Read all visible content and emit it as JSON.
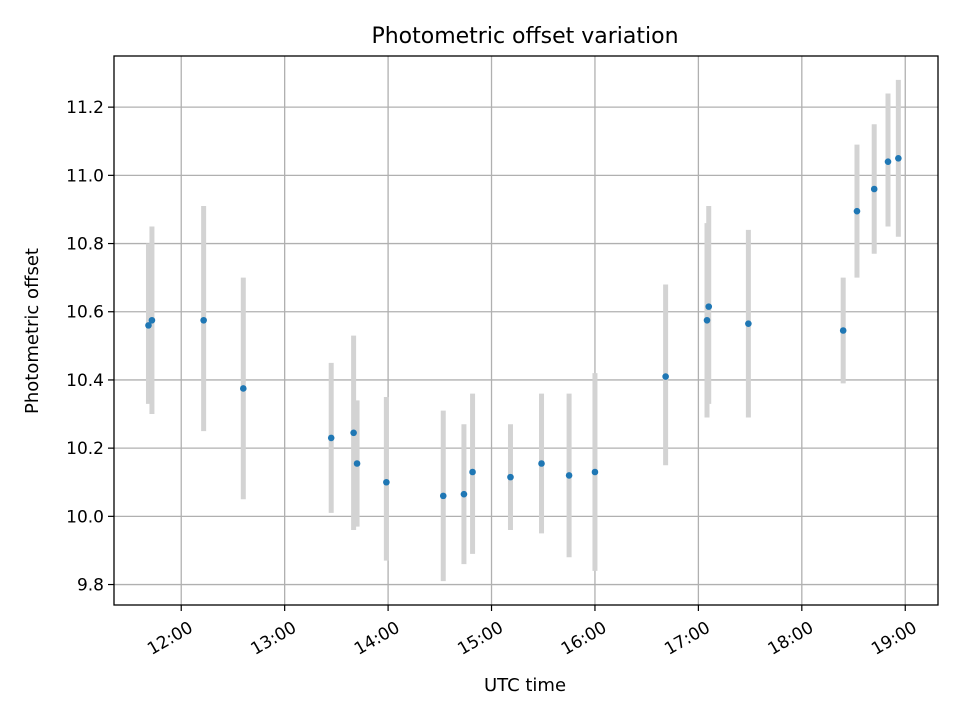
{
  "chart_data": {
    "type": "scatter",
    "title": "Photometric offset variation",
    "xlabel": "UTC time",
    "ylabel": "Photometric offset",
    "x_ticks": [
      "12:00",
      "13:00",
      "14:00",
      "15:00",
      "16:00",
      "17:00",
      "18:00",
      "19:00"
    ],
    "y_ticks": [
      "9.8",
      "10.0",
      "10.2",
      "10.4",
      "10.6",
      "10.8",
      "11.0",
      "11.2"
    ],
    "xlim": [
      "11:21",
      "19:19"
    ],
    "ylim": [
      9.74,
      11.35
    ],
    "grid": true,
    "colors": {
      "points": "#1f77b4",
      "errorbars": "#d3d3d3",
      "grid": "#b0b0b0"
    },
    "points": [
      {
        "time": "11:41",
        "y": 10.56,
        "ylow": 10.33,
        "yhigh": 10.8
      },
      {
        "time": "11:43",
        "y": 10.575,
        "ylow": 10.3,
        "yhigh": 10.85
      },
      {
        "time": "12:13",
        "y": 10.575,
        "ylow": 10.25,
        "yhigh": 10.91
      },
      {
        "time": "12:36",
        "y": 10.375,
        "ylow": 10.05,
        "yhigh": 10.7
      },
      {
        "time": "13:27",
        "y": 10.23,
        "ylow": 10.01,
        "yhigh": 10.45
      },
      {
        "time": "13:40",
        "y": 10.245,
        "ylow": 9.96,
        "yhigh": 10.53
      },
      {
        "time": "13:42",
        "y": 10.155,
        "ylow": 9.97,
        "yhigh": 10.34
      },
      {
        "time": "13:59",
        "y": 10.1,
        "ylow": 9.87,
        "yhigh": 10.35
      },
      {
        "time": "14:32",
        "y": 10.06,
        "ylow": 9.81,
        "yhigh": 10.31
      },
      {
        "time": "14:44",
        "y": 10.065,
        "ylow": 9.86,
        "yhigh": 10.27
      },
      {
        "time": "14:49",
        "y": 10.13,
        "ylow": 9.89,
        "yhigh": 10.36
      },
      {
        "time": "15:11",
        "y": 10.115,
        "ylow": 9.96,
        "yhigh": 10.27
      },
      {
        "time": "15:29",
        "y": 10.155,
        "ylow": 9.95,
        "yhigh": 10.36
      },
      {
        "time": "15:45",
        "y": 10.12,
        "ylow": 9.88,
        "yhigh": 10.36
      },
      {
        "time": "16:00",
        "y": 10.13,
        "ylow": 9.84,
        "yhigh": 10.42
      },
      {
        "time": "16:41",
        "y": 10.41,
        "ylow": 10.15,
        "yhigh": 10.68
      },
      {
        "time": "17:05",
        "y": 10.575,
        "ylow": 10.29,
        "yhigh": 10.86
      },
      {
        "time": "17:06",
        "y": 10.615,
        "ylow": 10.33,
        "yhigh": 10.91
      },
      {
        "time": "17:29",
        "y": 10.565,
        "ylow": 10.29,
        "yhigh": 10.84
      },
      {
        "time": "18:24",
        "y": 10.545,
        "ylow": 10.39,
        "yhigh": 10.7
      },
      {
        "time": "18:32",
        "y": 10.895,
        "ylow": 10.7,
        "yhigh": 11.09
      },
      {
        "time": "18:42",
        "y": 10.96,
        "ylow": 10.77,
        "yhigh": 11.15
      },
      {
        "time": "18:50",
        "y": 11.04,
        "ylow": 10.85,
        "yhigh": 11.24
      },
      {
        "time": "18:56",
        "y": 11.05,
        "ylow": 10.82,
        "yhigh": 11.28
      }
    ]
  }
}
